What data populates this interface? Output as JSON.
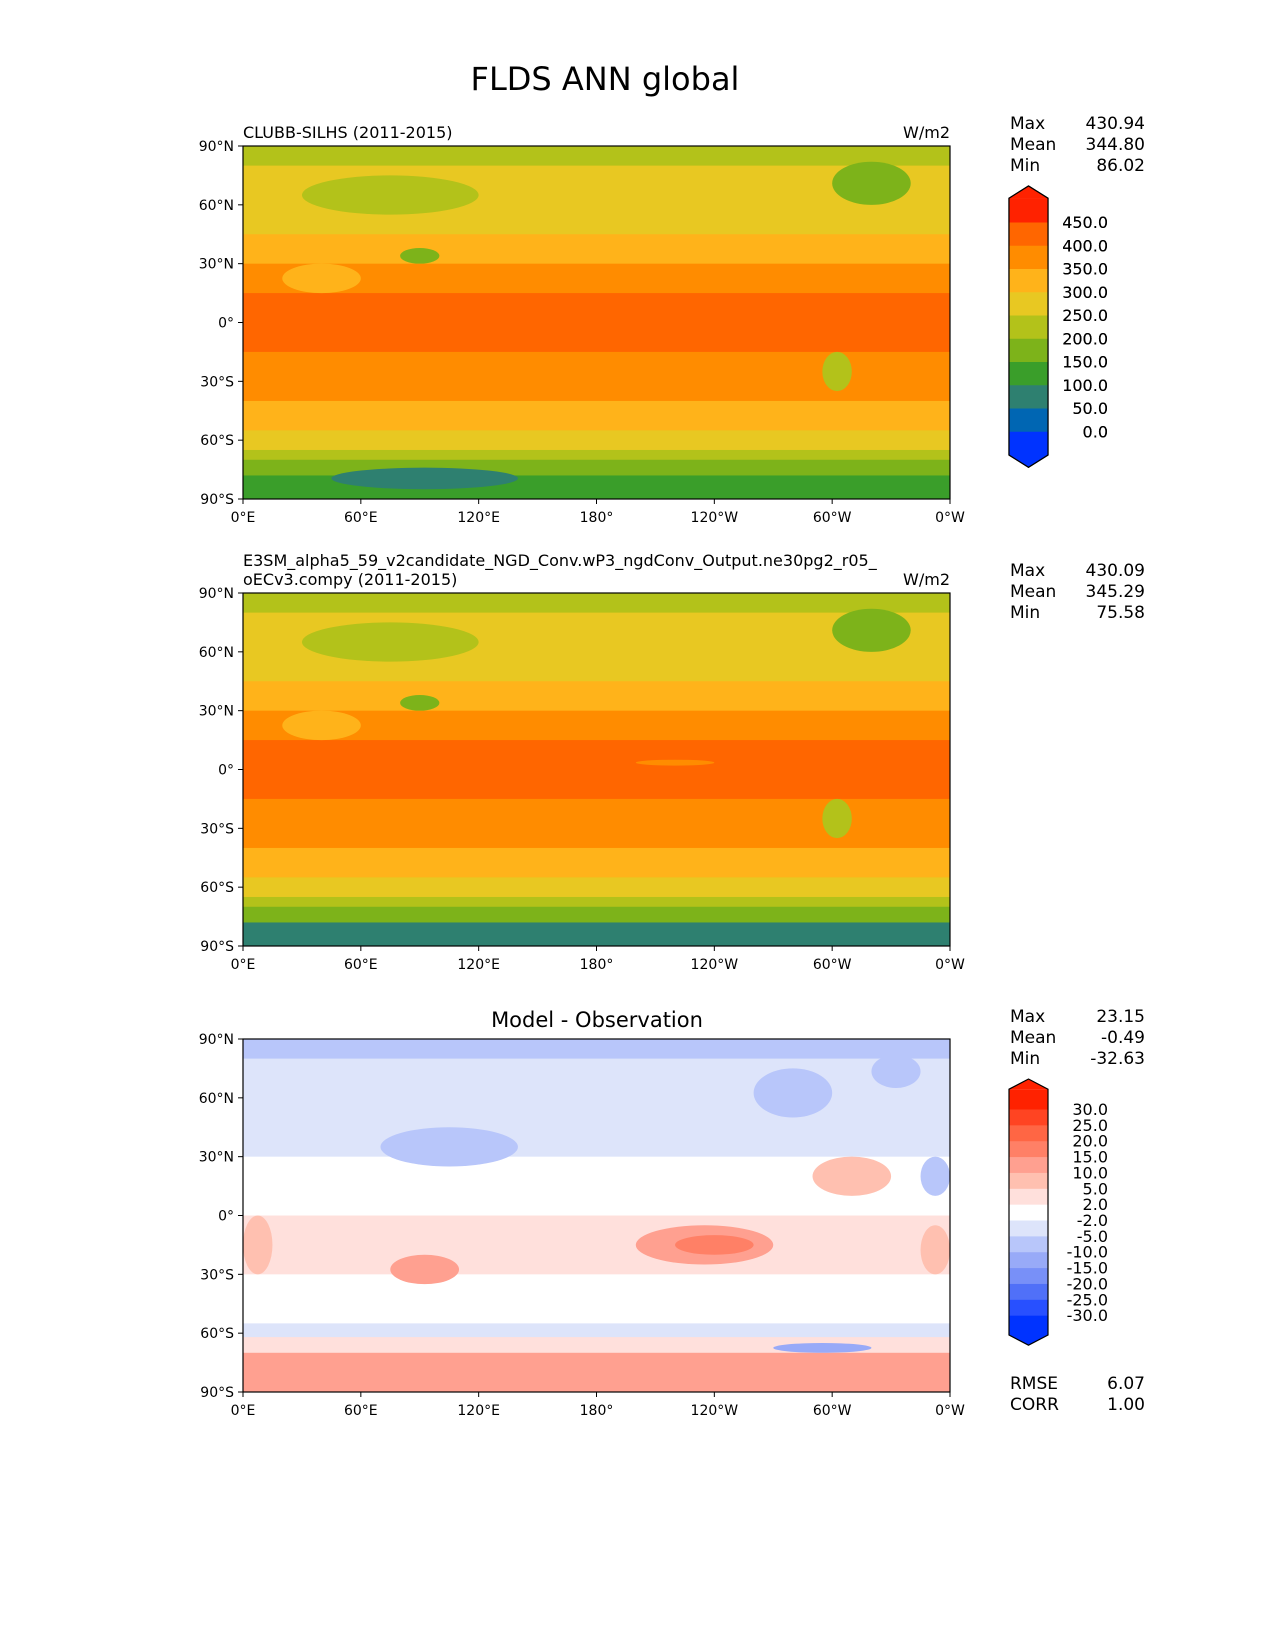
{
  "chart_data": {
    "type": "heatmap",
    "title": "FLDS ANN global",
    "x_ticks": [
      "0°E",
      "60°E",
      "120°E",
      "180°",
      "120°W",
      "60°W",
      "0°W"
    ],
    "y_ticks": [
      "90°N",
      "60°N",
      "30°N",
      "0°",
      "30°S",
      "60°S",
      "90°S"
    ],
    "panels": [
      {
        "title_left": "CLUBB-SILHS (2011-2015)",
        "units": "W/m2",
        "stats": {
          "max_label": "Max",
          "max": "430.94",
          "mean_label": "Mean",
          "mean": "344.80",
          "min_label": "Min",
          "min": "86.02"
        },
        "colorbar": "abs",
        "zonal_bands": [
          [
            90,
            80,
            225
          ],
          [
            80,
            60,
            270
          ],
          [
            60,
            45,
            290
          ],
          [
            45,
            30,
            330
          ],
          [
            30,
            15,
            365
          ],
          [
            15,
            -15,
            410
          ],
          [
            -15,
            -30,
            380
          ],
          [
            -30,
            -40,
            360
          ],
          [
            -40,
            -55,
            330
          ],
          [
            -55,
            -65,
            290
          ],
          [
            -65,
            -70,
            240
          ],
          [
            -70,
            -78,
            170
          ],
          [
            -78,
            -90,
            125
          ]
        ],
        "patches": [
          [
            300,
            340,
            82,
            60,
            170
          ],
          [
            80,
            100,
            38,
            30,
            170
          ],
          [
            30,
            120,
            75,
            55,
            240
          ],
          [
            45,
            140,
            -74,
            -85,
            90
          ],
          [
            20,
            60,
            30,
            15,
            340
          ],
          [
            295,
            310,
            -15,
            -35,
            200
          ]
        ]
      },
      {
        "title_left": "E3SM_alpha5_59_v2candidate_NGD_Conv.wP3_ngdConv_Output.ne30pg2_r05_oECv3.compy (2011-2015)",
        "units": "W/m2",
        "stats": {
          "max_label": "Max",
          "max": "430.09",
          "mean_label": "Mean",
          "mean": "345.29",
          "min_label": "Min",
          "min": "75.58"
        },
        "colorbar": "abs",
        "zonal_bands": [
          [
            90,
            80,
            225
          ],
          [
            80,
            60,
            265
          ],
          [
            60,
            45,
            290
          ],
          [
            45,
            30,
            330
          ],
          [
            30,
            15,
            370
          ],
          [
            15,
            -15,
            410
          ],
          [
            -15,
            -30,
            385
          ],
          [
            -30,
            -40,
            360
          ],
          [
            -40,
            -55,
            330
          ],
          [
            -55,
            -65,
            290
          ],
          [
            -65,
            -70,
            240
          ],
          [
            -70,
            -78,
            150
          ],
          [
            -78,
            -90,
            95
          ]
        ],
        "patches": [
          [
            300,
            340,
            82,
            60,
            170
          ],
          [
            80,
            100,
            38,
            30,
            170
          ],
          [
            30,
            120,
            75,
            55,
            240
          ],
          [
            20,
            60,
            30,
            15,
            340
          ],
          [
            295,
            310,
            -15,
            -35,
            200
          ],
          [
            200,
            240,
            5,
            2,
            370
          ]
        ]
      },
      {
        "title_center": "Model - Observation",
        "stats": {
          "max_label": "Max",
          "max": "23.15",
          "mean_label": "Mean",
          "mean": "-0.49",
          "min_label": "Min",
          "min": "-32.63"
        },
        "extra": {
          "rmse_label": "RMSE",
          "rmse": "6.07",
          "corr_label": "CORR",
          "corr": "1.00"
        },
        "colorbar": "diff",
        "zonal_bands": [
          [
            90,
            80,
            -7
          ],
          [
            80,
            60,
            -3
          ],
          [
            60,
            30,
            -4
          ],
          [
            30,
            0,
            0
          ],
          [
            0,
            -30,
            3
          ],
          [
            -30,
            -55,
            0
          ],
          [
            -55,
            -62,
            -3
          ],
          [
            -62,
            -70,
            3
          ],
          [
            -70,
            -90,
            12
          ]
        ],
        "patches": [
          [
            200,
            270,
            -5,
            -25,
            12
          ],
          [
            220,
            260,
            -10,
            -20,
            18
          ],
          [
            75,
            110,
            -20,
            -35,
            12
          ],
          [
            70,
            140,
            45,
            25,
            -8
          ],
          [
            290,
            330,
            30,
            10,
            8
          ],
          [
            260,
            300,
            75,
            50,
            -8
          ],
          [
            320,
            345,
            82,
            65,
            -10
          ],
          [
            270,
            320,
            -65,
            -70,
            -12
          ],
          [
            345,
            360,
            30,
            10,
            -8
          ],
          [
            345,
            360,
            -5,
            -30,
            8
          ],
          [
            0,
            15,
            0,
            -30,
            8
          ]
        ]
      }
    ],
    "colorbars": {
      "abs": {
        "levels": [
          "0.0",
          "50.0",
          "100.0",
          "150.0",
          "200.0",
          "250.0",
          "300.0",
          "350.0",
          "400.0",
          "450.0"
        ],
        "bounds": [
          0,
          50,
          100,
          150,
          200,
          250,
          300,
          350,
          400,
          450
        ],
        "colors": [
          "#0033ff",
          "#0066b3",
          "#2e8070",
          "#3a9e2a",
          "#7db31a",
          "#b3c21a",
          "#e8c822",
          "#ffb31a",
          "#ff8c00",
          "#ff6600",
          "#ff2200"
        ]
      },
      "diff": {
        "levels": [
          "-30.0",
          "-25.0",
          "-20.0",
          "-15.0",
          "-10.0",
          "-5.0",
          "-2.0",
          "2.0",
          "5.0",
          "10.0",
          "15.0",
          "20.0",
          "25.0",
          "30.0"
        ],
        "bounds": [
          -30,
          -25,
          -20,
          -15,
          -10,
          -5,
          -2,
          2,
          5,
          10,
          15,
          20,
          25,
          30
        ],
        "colors": [
          "#0033ff",
          "#2850ff",
          "#5070f8",
          "#7890f8",
          "#98aaf8",
          "#b8c6fa",
          "#dde4fa",
          "#ffffff",
          "#ffe0dc",
          "#ffc0b0",
          "#ffa090",
          "#ff8066",
          "#ff6644",
          "#ff4422",
          "#ff2200"
        ]
      }
    }
  }
}
